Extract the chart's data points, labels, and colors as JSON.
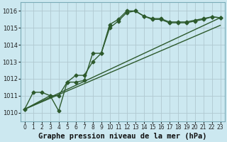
{
  "background_color": "#cce8f0",
  "grid_color": "#b0c8d0",
  "line_color": "#2d5a2d",
  "marker": "D",
  "markersize": 2.5,
  "linewidth": 1.0,
  "xlabel": "Graphe pression niveau de la mer (hPa)",
  "xlabel_fontsize": 7.5,
  "ylim": [
    1009.5,
    1016.5
  ],
  "xlim": [
    -0.5,
    23.5
  ],
  "yticks": [
    1010,
    1011,
    1012,
    1013,
    1014,
    1015,
    1016
  ],
  "xticks": [
    0,
    1,
    2,
    3,
    4,
    5,
    6,
    7,
    8,
    9,
    10,
    11,
    12,
    13,
    14,
    15,
    16,
    17,
    18,
    19,
    20,
    21,
    22,
    23
  ],
  "curve_wiggly_x": [
    0,
    1,
    2,
    3,
    4,
    5,
    6,
    7,
    8,
    9,
    10,
    11,
    12,
    13,
    14,
    15,
    16,
    17,
    18,
    19,
    20,
    21,
    22,
    23
  ],
  "curve_wiggly_y": [
    1010.2,
    1011.2,
    1011.2,
    1011.0,
    1010.1,
    1011.8,
    1011.8,
    1011.9,
    1013.5,
    1013.5,
    1015.2,
    1015.5,
    1016.0,
    1016.0,
    1015.7,
    1015.55,
    1015.55,
    1015.35,
    1015.35,
    1015.35,
    1015.45,
    1015.55,
    1015.65,
    1015.6
  ],
  "curve_smooth_x": [
    0,
    3,
    4,
    5,
    6,
    7,
    8,
    9,
    10,
    11,
    12,
    13,
    14,
    15,
    16,
    17,
    18,
    19,
    20,
    21,
    22,
    23
  ],
  "curve_smooth_y": [
    1010.2,
    1011.0,
    1011.0,
    1011.8,
    1012.2,
    1012.2,
    1013.0,
    1013.5,
    1015.0,
    1015.4,
    1015.9,
    1016.0,
    1015.7,
    1015.5,
    1015.5,
    1015.3,
    1015.3,
    1015.3,
    1015.4,
    1015.5,
    1015.65,
    1015.6
  ],
  "line1_x": [
    0,
    23
  ],
  "line1_y": [
    1010.2,
    1015.6
  ],
  "line2_x": [
    0,
    23
  ],
  "line2_y": [
    1010.2,
    1015.15
  ],
  "tick_fontsize": 6.0
}
